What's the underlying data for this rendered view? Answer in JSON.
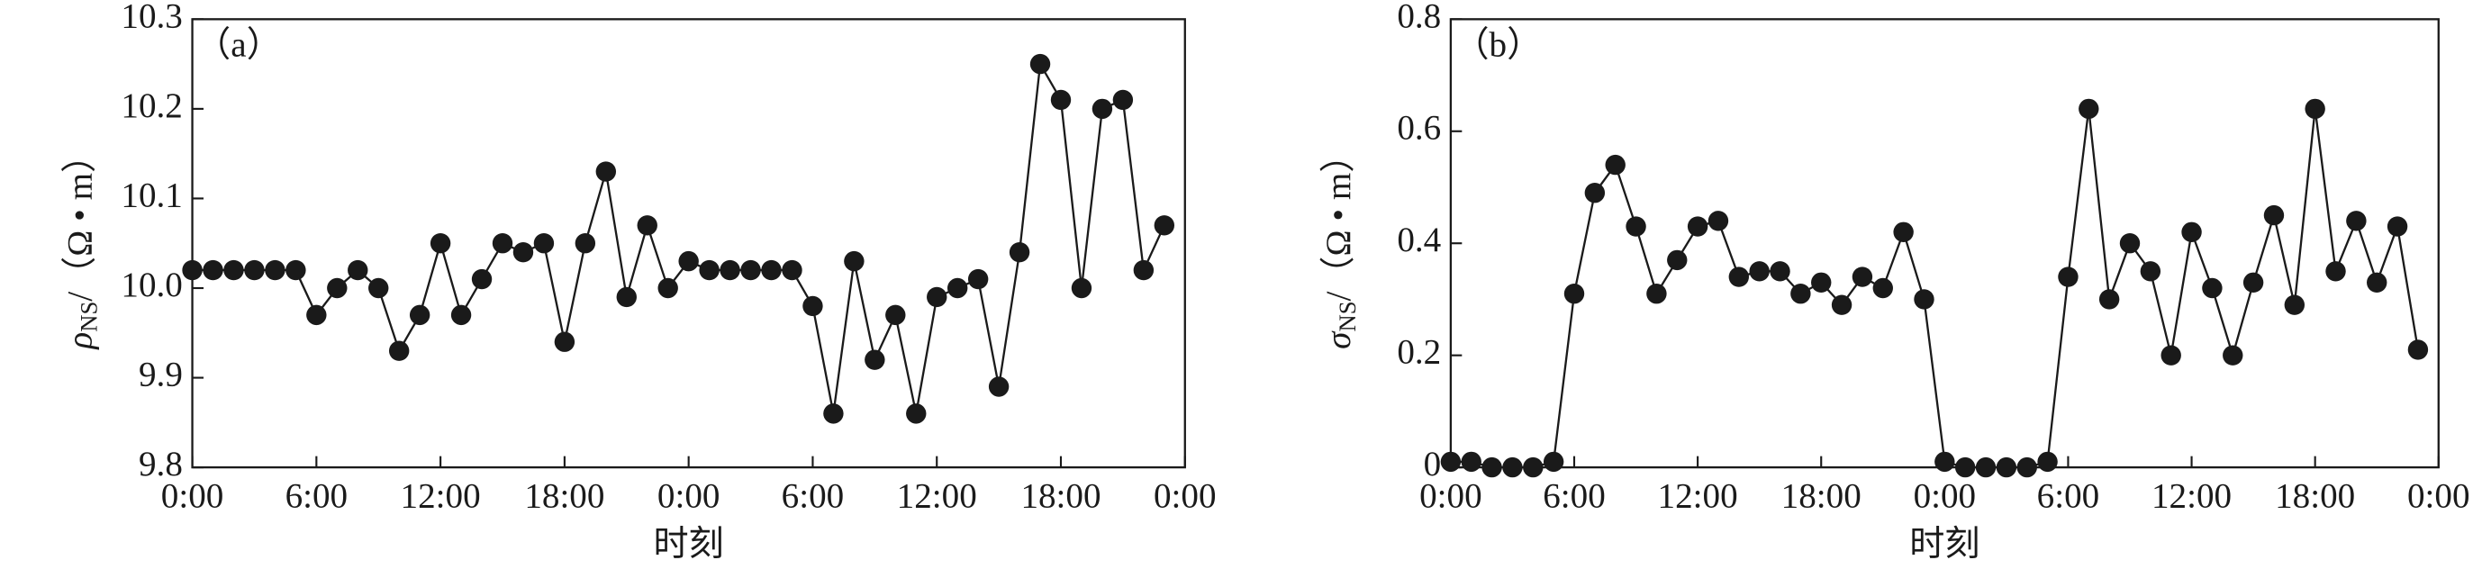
{
  "chart_data": [
    {
      "type": "line",
      "annotation": "（a）",
      "xlabel": "时刻",
      "ylabel": {
        "symbol": "ρ",
        "subscript": "NS",
        "unit": "/（Ω • m）"
      },
      "color": "#1a1a1a",
      "x": [
        0,
        1,
        2,
        3,
        4,
        5,
        6,
        7,
        8,
        9,
        10,
        11,
        12,
        13,
        14,
        15,
        16,
        17,
        18,
        19,
        20,
        21,
        22,
        23,
        24,
        25,
        26,
        27,
        28,
        29,
        30,
        31,
        32,
        33,
        34,
        35,
        36,
        37,
        38,
        39,
        40,
        41,
        42,
        43,
        44,
        45,
        46,
        47
      ],
      "series": [
        {
          "name": "ρNS",
          "color": "#1a1a1a",
          "values": [
            10.02,
            10.02,
            10.02,
            10.02,
            10.02,
            10.02,
            9.97,
            10.0,
            10.02,
            10.0,
            9.93,
            9.97,
            10.05,
            9.97,
            10.01,
            10.05,
            10.04,
            10.05,
            9.94,
            10.05,
            10.13,
            9.99,
            10.07,
            10.0,
            10.03,
            10.02,
            10.02,
            10.02,
            10.02,
            10.02,
            9.98,
            9.86,
            10.03,
            9.92,
            9.97,
            9.86,
            9.99,
            10.0,
            10.01,
            9.89,
            10.04,
            10.25,
            10.21,
            10.0,
            10.2,
            10.21,
            10.02,
            10.07
          ]
        }
      ],
      "xlim": [
        0,
        48
      ],
      "xticks": [
        {
          "value": 0,
          "label": "0:00"
        },
        {
          "value": 6,
          "label": "6:00"
        },
        {
          "value": 12,
          "label": "12:00"
        },
        {
          "value": 18,
          "label": "18:00"
        },
        {
          "value": 24,
          "label": "0:00"
        },
        {
          "value": 30,
          "label": "6:00"
        },
        {
          "value": 36,
          "label": "12:00"
        },
        {
          "value": 42,
          "label": "18:00"
        },
        {
          "value": 48,
          "label": "0:00"
        }
      ],
      "ylim": [
        9.8,
        10.3
      ],
      "yticks": [
        9.8,
        9.9,
        {
          "value": 10,
          "label": "10.0"
        },
        10.1,
        10.2,
        10.3
      ]
    },
    {
      "type": "line",
      "annotation": "（b）",
      "xlabel": "时刻",
      "ylabel": {
        "symbol": "σ",
        "subscript": "NS",
        "unit": "/（Ω • m）"
      },
      "color": "#1a1a1a",
      "x": [
        0,
        1,
        2,
        3,
        4,
        5,
        6,
        7,
        8,
        9,
        10,
        11,
        12,
        13,
        14,
        15,
        16,
        17,
        18,
        19,
        20,
        21,
        22,
        23,
        24,
        25,
        26,
        27,
        28,
        29,
        30,
        31,
        32,
        33,
        34,
        35,
        36,
        37,
        38,
        39,
        40,
        41,
        42,
        43,
        44,
        45,
        46,
        47
      ],
      "series": [
        {
          "name": "σNS",
          "color": "#1a1a1a",
          "values": [
            0.01,
            0.01,
            0,
            0,
            0,
            0.01,
            0.31,
            0.49,
            0.54,
            0.43,
            0.31,
            0.37,
            0.43,
            0.44,
            0.34,
            0.35,
            0.35,
            0.31,
            0.33,
            0.29,
            0.34,
            0.32,
            0.42,
            0.3,
            0.01,
            0,
            0,
            0,
            0,
            0.01,
            0.34,
            0.64,
            0.3,
            0.4,
            0.35,
            0.2,
            0.42,
            0.32,
            0.2,
            0.33,
            0.45,
            0.29,
            0.64,
            0.35,
            0.44,
            0.33,
            0.43,
            0.21
          ]
        }
      ],
      "xlim": [
        0,
        48
      ],
      "xticks": [
        {
          "value": 0,
          "label": "0:00"
        },
        {
          "value": 6,
          "label": "6:00"
        },
        {
          "value": 12,
          "label": "12:00"
        },
        {
          "value": 18,
          "label": "18:00"
        },
        {
          "value": 24,
          "label": "0:00"
        },
        {
          "value": 30,
          "label": "6:00"
        },
        {
          "value": 36,
          "label": "12:00"
        },
        {
          "value": 42,
          "label": "18:00"
        },
        {
          "value": 48,
          "label": "0:00"
        }
      ],
      "ylim": [
        0,
        0.8
      ],
      "yticks": [
        0,
        0.2,
        0.4,
        0.6,
        0.8
      ]
    }
  ]
}
